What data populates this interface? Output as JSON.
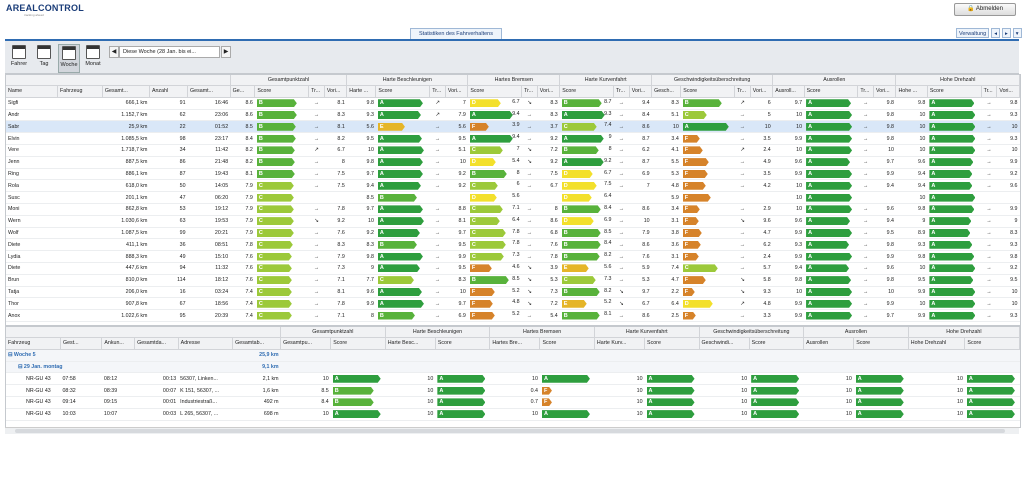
{
  "app": {
    "logo_text": "AREALCONTROL",
    "logo_sub": "tracking ahead",
    "logout": "Abmelden",
    "tab": "Statistiken des Fahrverhaltens",
    "admin": "Verwaltung"
  },
  "toolbar": {
    "fahrer": "Fahrer",
    "tag": "Tag",
    "woche": "Woche",
    "monat": "Monat",
    "date_range": "Diese Woche (28 Jan. bis ei..."
  },
  "colors": {
    "A": "#2e9e3e",
    "B": "#58b23b",
    "C": "#9cc93a",
    "D": "#f3e02b",
    "E": "#e5b528",
    "F": "#d6832a"
  },
  "upper": {
    "groups": [
      "Gesamtpunktzahl",
      "Harte Beschleunigen",
      "Hartes Bremsen",
      "Harte Kurvenfahrt",
      "Geschwindigkeitsüberschreitung",
      "Ausrollen",
      "Hohe Drehzahl"
    ],
    "headers": [
      "Name",
      "Fahrzeug",
      "Gesamt...",
      "Anzahl",
      "Gesamt...",
      "Ge...",
      "Score",
      "Tr...",
      "Vori...",
      "Harte ...",
      "Score",
      "Tr...",
      "Vori...",
      "Score",
      "Tr...",
      "Vori...",
      "Score",
      "Tr...",
      "Vori...",
      "Gesch...",
      "Score",
      "Tr...",
      "Vori...",
      "Ausroll...",
      "Score",
      "Tr...",
      "Vori...",
      "Hohe ...",
      "Score",
      "Tr...",
      "Vori..."
    ],
    "rows": [
      {
        "n": "Sigfi",
        "d": "666,1 km",
        "c": "91",
        "t": "16:46",
        "g": "8.6",
        "gs": "B",
        "gt": "→",
        "gv": "8.1",
        "hb": "9.8",
        "hbs": "A",
        "hbt": "↗",
        "hbv": "7",
        "hr": "6.7",
        "hrs": "D",
        "hrt": "↘",
        "hrv": "8.3",
        "hk": "8.7",
        "hks": "B",
        "hkt": "→",
        "hkv": "9.4",
        "gw": "8.3",
        "gws": "B",
        "gwt": "↗",
        "gwv": "6",
        "ar": "9.7",
        "ars": "A",
        "art": "→",
        "arv": "9.8",
        "hd": "9.8",
        "hds": "A",
        "hdt": "→",
        "hdv": "9.8"
      },
      {
        "n": "Andr",
        "d": "1.152,7 km",
        "c": "62",
        "t": "23:06",
        "g": "8.6",
        "gs": "B",
        "gt": "→",
        "gv": "8.3",
        "hb": "9.3",
        "hbs": "A",
        "hbt": "↗",
        "hbv": "7.9",
        "hr": "9.4",
        "hrs": "A",
        "hrt": "→",
        "hrv": "8.3",
        "hk": "9.3",
        "hks": "A",
        "hkt": "→",
        "hkv": "8.4",
        "gw": "5.1",
        "gws": "C",
        "gwt": "→",
        "gwv": "5",
        "ar": "10",
        "ars": "A",
        "art": "→",
        "arv": "9.8",
        "hd": "10",
        "hds": "A",
        "hdt": "→",
        "hdv": "9.3"
      },
      {
        "n": "Sabr",
        "d": "25,9 km",
        "c": "22",
        "t": "01:52",
        "g": "8.5",
        "gs": "B",
        "gt": "→",
        "gv": "8.1",
        "hb": "5.6",
        "hbs": "E",
        "hbt": "→",
        "hbv": "5.6",
        "hr": "3.9",
        "hrs": "F",
        "hrt": "→",
        "hrv": "3.7",
        "hk": "7.4",
        "hks": "C",
        "hkt": "→",
        "hkv": "8.6",
        "gw": "10",
        "gws": "A",
        "gwt": "→",
        "gwv": "10",
        "ar": "10",
        "ars": "A",
        "art": "→",
        "arv": "9.8",
        "hd": "10",
        "hds": "A",
        "hdt": "→",
        "hdv": "10",
        "sel": true
      },
      {
        "n": "Elvin",
        "d": "1.085,5 km",
        "c": "98",
        "t": "23:17",
        "g": "8.4",
        "gs": "B",
        "gt": "→",
        "gv": "8.2",
        "hb": "9.5",
        "hbs": "A",
        "hbt": "→",
        "hbv": "9.5",
        "hr": "9.4",
        "hrs": "A",
        "hrt": "→",
        "hrv": "9.2",
        "hk": "9",
        "hks": "A",
        "hkt": "→",
        "hkv": "8.7",
        "gw": "3.4",
        "gws": "F",
        "gwt": "→",
        "gwv": "3.5",
        "ar": "9.9",
        "ars": "A",
        "art": "→",
        "arv": "9.8",
        "hd": "10",
        "hds": "A",
        "hdt": "→",
        "hdv": "9.3"
      },
      {
        "n": "Vere",
        "d": "1.718,7 km",
        "c": "34",
        "t": "11:42",
        "g": "8.2",
        "gs": "B",
        "gt": "↗",
        "gv": "6.7",
        "hb": "10",
        "hbs": "A",
        "hbt": "→",
        "hbv": "5.1",
        "hr": "7",
        "hrs": "C",
        "hrt": "↘",
        "hrv": "7.2",
        "hk": "8",
        "hks": "B",
        "hkt": "→",
        "hkv": "6.2",
        "gw": "4.1",
        "gws": "F",
        "gwt": "↗",
        "gwv": "2.4",
        "ar": "10",
        "ars": "A",
        "art": "→",
        "arv": "10",
        "hd": "10",
        "hds": "A",
        "hdt": "→",
        "hdv": "10"
      },
      {
        "n": "Jenn",
        "d": "887,5 km",
        "c": "86",
        "t": "21:48",
        "g": "8.2",
        "gs": "B",
        "gt": "→",
        "gv": "8",
        "hb": "9.8",
        "hbs": "A",
        "hbt": "→",
        "hbv": "10",
        "hr": "5.4",
        "hrs": "D",
        "hrt": "↘",
        "hrv": "9.2",
        "hk": "9.2",
        "hks": "A",
        "hkt": "→",
        "hkv": "8.7",
        "gw": "5.5",
        "gws": "F",
        "gwt": "→",
        "gwv": "4.9",
        "ar": "9.6",
        "ars": "A",
        "art": "→",
        "arv": "9.7",
        "hd": "9.6",
        "hds": "A",
        "hdt": "→",
        "hdv": "9.9"
      },
      {
        "n": "Ring",
        "d": "886,1 km",
        "c": "87",
        "t": "19:43",
        "g": "8.1",
        "gs": "B",
        "gt": "→",
        "gv": "7.5",
        "hb": "9.7",
        "hbs": "A",
        "hbt": "→",
        "hbv": "9.2",
        "hr": "8",
        "hrs": "B",
        "hrt": "→",
        "hrv": "7.5",
        "hk": "6.7",
        "hks": "D",
        "hkt": "→",
        "hkv": "6.9",
        "gw": "5.3",
        "gws": "F",
        "gwt": "→",
        "gwv": "3.5",
        "ar": "9.9",
        "ars": "A",
        "art": "→",
        "arv": "9.9",
        "hd": "9.4",
        "hds": "A",
        "hdt": "→",
        "hdv": "9.2"
      },
      {
        "n": "Rola",
        "d": "618,0 km",
        "c": "50",
        "t": "14:05",
        "g": "7.9",
        "gs": "C",
        "gt": "→",
        "gv": "7.5",
        "hb": "9.4",
        "hbs": "A",
        "hbt": "→",
        "hbv": "9.2",
        "hr": "6",
        "hrs": "C",
        "hrt": "→",
        "hrv": "6.7",
        "hk": "7.5",
        "hks": "D",
        "hkt": "→",
        "hkv": "7",
        "gw": "4.8",
        "gws": "F",
        "gwt": "→",
        "gwv": "4.2",
        "ar": "10",
        "ars": "A",
        "art": "→",
        "arv": "9.4",
        "hd": "9.4",
        "hds": "A",
        "hdt": "→",
        "hdv": "9.6"
      },
      {
        "n": "Susc",
        "d": "201,1 km",
        "c": "47",
        "t": "06:20",
        "g": "7.9",
        "gs": "C",
        "gt": "",
        "gv": "",
        "hb": "8.5",
        "hbs": "B",
        "hbt": "",
        "hbv": "",
        "hr": "5.6",
        "hrs": "D",
        "hrt": "",
        "hrv": "",
        "hk": "6.4",
        "hks": "D",
        "hkt": "",
        "hkv": "",
        "gw": "5.9",
        "gws": "F",
        "gwt": "",
        "gwv": "",
        "ar": "10",
        "ars": "A",
        "art": "",
        "arv": "",
        "hd": "10",
        "hds": "A",
        "hdt": "",
        "hdv": ""
      },
      {
        "n": "Moni",
        "d": "862,8 km",
        "c": "53",
        "t": "19:12",
        "g": "7.9",
        "gs": "C",
        "gt": "→",
        "gv": "7.8",
        "hb": "9.7",
        "hbs": "A",
        "hbt": "→",
        "hbv": "8.8",
        "hr": "7.1",
        "hrs": "C",
        "hrt": "→",
        "hrv": "8",
        "hk": "8.4",
        "hks": "B",
        "hkt": "→",
        "hkv": "8.6",
        "gw": "3.4",
        "gws": "F",
        "gwt": "→",
        "gwv": "2.9",
        "ar": "10",
        "ars": "A",
        "art": "→",
        "arv": "9.6",
        "hd": "9.8",
        "hds": "A",
        "hdt": "→",
        "hdv": "9.9"
      },
      {
        "n": "Wern",
        "d": "1.030,6 km",
        "c": "63",
        "t": "19:53",
        "g": "7.9",
        "gs": "C",
        "gt": "↘",
        "gv": "9.2",
        "hb": "10",
        "hbs": "A",
        "hbt": "→",
        "hbv": "8.1",
        "hr": "6.4",
        "hrs": "C",
        "hrt": "→",
        "hrv": "8.6",
        "hk": "6.9",
        "hks": "D",
        "hkt": "→",
        "hkv": "10",
        "gw": "3.1",
        "gws": "F",
        "gwt": "↘",
        "gwv": "9.6",
        "ar": "9.6",
        "ars": "A",
        "art": "→",
        "arv": "9.4",
        "hd": "9",
        "hds": "A",
        "hdt": "→",
        "hdv": "9"
      },
      {
        "n": "Wolf",
        "d": "1.087,5 km",
        "c": "99",
        "t": "20:21",
        "g": "7.9",
        "gs": "C",
        "gt": "→",
        "gv": "7.6",
        "hb": "9.2",
        "hbs": "A",
        "hbt": "→",
        "hbv": "9.7",
        "hr": "7.8",
        "hrs": "C",
        "hrt": "→",
        "hrv": "6.8",
        "hk": "8.5",
        "hks": "B",
        "hkt": "→",
        "hkv": "7.9",
        "gw": "3.8",
        "gws": "F",
        "gwt": "→",
        "gwv": "4.7",
        "ar": "9.9",
        "ars": "A",
        "art": "→",
        "arv": "9.5",
        "hd": "8.9",
        "hds": "A",
        "hdt": "→",
        "hdv": "8.3"
      },
      {
        "n": "Diete",
        "d": "411,1 km",
        "c": "36",
        "t": "08:51",
        "g": "7.8",
        "gs": "C",
        "gt": "→",
        "gv": "8.3",
        "hb": "8.3",
        "hbs": "B",
        "hbt": "→",
        "hbv": "9.5",
        "hr": "7.8",
        "hrs": "C",
        "hrt": "→",
        "hrv": "7.6",
        "hk": "8.4",
        "hks": "B",
        "hkt": "→",
        "hkv": "8.6",
        "gw": "3.6",
        "gws": "F",
        "gwt": "→",
        "gwv": "6.2",
        "ar": "9.3",
        "ars": "A",
        "art": "→",
        "arv": "9.8",
        "hd": "9.3",
        "hds": "A",
        "hdt": "→",
        "hdv": "9.3"
      },
      {
        "n": "Lydia",
        "d": "888,3 km",
        "c": "49",
        "t": "15:10",
        "g": "7.6",
        "gs": "C",
        "gt": "→",
        "gv": "7.9",
        "hb": "9.8",
        "hbs": "A",
        "hbt": "→",
        "hbv": "9.9",
        "hr": "7.3",
        "hrs": "C",
        "hrt": "→",
        "hrv": "7.8",
        "hk": "8.2",
        "hks": "B",
        "hkt": "→",
        "hkv": "7.6",
        "gw": "3.1",
        "gws": "F",
        "gwt": "→",
        "gwv": "2.4",
        "ar": "9.9",
        "ars": "A",
        "art": "→",
        "arv": "9.9",
        "hd": "9.8",
        "hds": "A",
        "hdt": "→",
        "hdv": "9.8"
      },
      {
        "n": "Diete",
        "d": "447,6 km",
        "c": "94",
        "t": "11:32",
        "g": "7.6",
        "gs": "C",
        "gt": "→",
        "gv": "7.3",
        "hb": "9",
        "hbs": "A",
        "hbt": "→",
        "hbv": "9.5",
        "hr": "4.6",
        "hrs": "F",
        "hrt": "↘",
        "hrv": "3.9",
        "hk": "5.6",
        "hks": "E",
        "hkt": "→",
        "hkv": "5.9",
        "gw": "7.4",
        "gws": "C",
        "gwt": "→",
        "gwv": "5.7",
        "ar": "9.4",
        "ars": "A",
        "art": "→",
        "arv": "9.6",
        "hd": "10",
        "hds": "A",
        "hdt": "→",
        "hdv": "9.2"
      },
      {
        "n": "Brun",
        "d": "810,0 km",
        "c": "114",
        "t": "18:12",
        "g": "7.6",
        "gs": "C",
        "gt": "→",
        "gv": "7.1",
        "hb": "7.7",
        "hbs": "C",
        "hbt": "→",
        "hbv": "8.3",
        "hr": "8.5",
        "hrs": "B",
        "hrt": "↘",
        "hrv": "5.3",
        "hk": "7.3",
        "hks": "C",
        "hkt": "→",
        "hkv": "5.3",
        "gw": "4.7",
        "gws": "F",
        "gwt": "↘",
        "gwv": "5.8",
        "ar": "9.8",
        "ars": "A",
        "art": "→",
        "arv": "9.8",
        "hd": "9.5",
        "hds": "A",
        "hdt": "→",
        "hdv": "9.5"
      },
      {
        "n": "Tatja",
        "d": "206,0 km",
        "c": "16",
        "t": "03:24",
        "g": "7.4",
        "gs": "C",
        "gt": "→",
        "gv": "8.1",
        "hb": "9.6",
        "hbs": "A",
        "hbt": "→",
        "hbv": "10",
        "hr": "5.2",
        "hrs": "F",
        "hrt": "↘",
        "hrv": "7.3",
        "hk": "8.2",
        "hks": "B",
        "hkt": "↘",
        "hkv": "9.7",
        "gw": "2.2",
        "gws": "F",
        "gwt": "↘",
        "gwv": "9.3",
        "ar": "10",
        "ars": "A",
        "art": "→",
        "arv": "10",
        "hd": "9.9",
        "hds": "A",
        "hdt": "→",
        "hdv": "10"
      },
      {
        "n": "Thor",
        "d": "907,8 km",
        "c": "67",
        "t": "18:56",
        "g": "7.4",
        "gs": "C",
        "gt": "→",
        "gv": "7.8",
        "hb": "9.9",
        "hbs": "A",
        "hbt": "→",
        "hbv": "9.7",
        "hr": "4.8",
        "hrs": "F",
        "hrt": "↘",
        "hrv": "7.2",
        "hk": "5.2",
        "hks": "E",
        "hkt": "↘",
        "hkv": "6.7",
        "gw": "6.4",
        "gws": "D",
        "gwt": "↗",
        "gwv": "4.8",
        "ar": "9.9",
        "ars": "A",
        "art": "→",
        "arv": "9.9",
        "hd": "10",
        "hds": "A",
        "hdt": "→",
        "hdv": "10"
      },
      {
        "n": "Anox",
        "d": "1.022,6 km",
        "c": "95",
        "t": "20:39",
        "g": "7.4",
        "gs": "C",
        "gt": "→",
        "gv": "7.1",
        "hb": "8",
        "hbs": "B",
        "hbt": "→",
        "hbv": "6.9",
        "hr": "5.2",
        "hrs": "F",
        "hrt": "→",
        "hrv": "5.4",
        "hk": "8.1",
        "hks": "B",
        "hkt": "→",
        "hkv": "8.6",
        "gw": "2.5",
        "gws": "F",
        "gwt": "→",
        "gwv": "3.3",
        "ar": "9.9",
        "ars": "A",
        "art": "→",
        "arv": "9.7",
        "hd": "9.9",
        "hds": "A",
        "hdt": "→",
        "hdv": "9.3"
      }
    ]
  },
  "lower": {
    "groups": [
      "Gesamtpunktzahl",
      "Harte Beschleunigen",
      "Hartes Bremsen",
      "Harte Kurvenfahrt",
      "Geschwindigkeitsüberschreitung",
      "Ausrollen",
      "Hohe Drehzahl"
    ],
    "headers": [
      "Fahrzeug",
      "Gest...",
      "Ankun...",
      "Gesamtda...",
      "Adresse",
      "Gesamtab...",
      "Gesamtpu...",
      "Score",
      "Harte Besc...",
      "Score",
      "Hartes Bre...",
      "Score",
      "Harte Kurv...",
      "Score",
      "Geschwindi...",
      "Score",
      "Ausrollen",
      "Score",
      "Hohe Drehzahl",
      "Score"
    ],
    "week_group": "Woche 5",
    "week_km": "25,9 km",
    "day_group": "29 Jan. montag",
    "day_km": "9,1 km",
    "rows": [
      {
        "f": "NR-GU 43",
        "s": "07:58",
        "a": "08:12",
        "d": "00:13",
        "adr": "56307, Linken...",
        "km": "2,1 km",
        "g": "10",
        "gs": "A",
        "hb": "10",
        "hbs": "A",
        "hr": "10",
        "hrs": "A",
        "hk": "10",
        "hks": "A",
        "gw": "10",
        "gws": "A",
        "ar": "10",
        "ars": "A",
        "hd": "10",
        "hds": "A"
      },
      {
        "f": "NR-GU 43",
        "s": "08:32",
        "a": "08:39",
        "d": "00:07",
        "adr": "K 151, 56307, ...",
        "km": "1,6 km",
        "g": "8.5",
        "gs": "B",
        "hb": "10",
        "hbs": "A",
        "hr": "0.4",
        "hrs": "F",
        "hk": "10",
        "hks": "A",
        "gw": "10",
        "gws": "A",
        "ar": "10",
        "ars": "A",
        "hd": "10",
        "hds": "A"
      },
      {
        "f": "NR-GU 43",
        "s": "09:14",
        "a": "09:15",
        "d": "00:01",
        "adr": "Industriestraß...",
        "km": "492 m",
        "g": "8.4",
        "gs": "B",
        "hb": "10",
        "hbs": "A",
        "hr": "0.7",
        "hrs": "F",
        "hk": "10",
        "hks": "A",
        "gw": "10",
        "gws": "A",
        "ar": "10",
        "ars": "A",
        "hd": "10",
        "hds": "A"
      },
      {
        "f": "NR-GU 43",
        "s": "10:03",
        "a": "10:07",
        "d": "00:03",
        "adr": "L 265, 56307, ...",
        "km": "698 m",
        "g": "10",
        "gs": "A",
        "hb": "10",
        "hbs": "A",
        "hr": "10",
        "hrs": "A",
        "hk": "10",
        "hks": "A",
        "gw": "10",
        "gws": "A",
        "ar": "10",
        "ars": "A",
        "hd": "10",
        "hds": "A"
      }
    ]
  }
}
